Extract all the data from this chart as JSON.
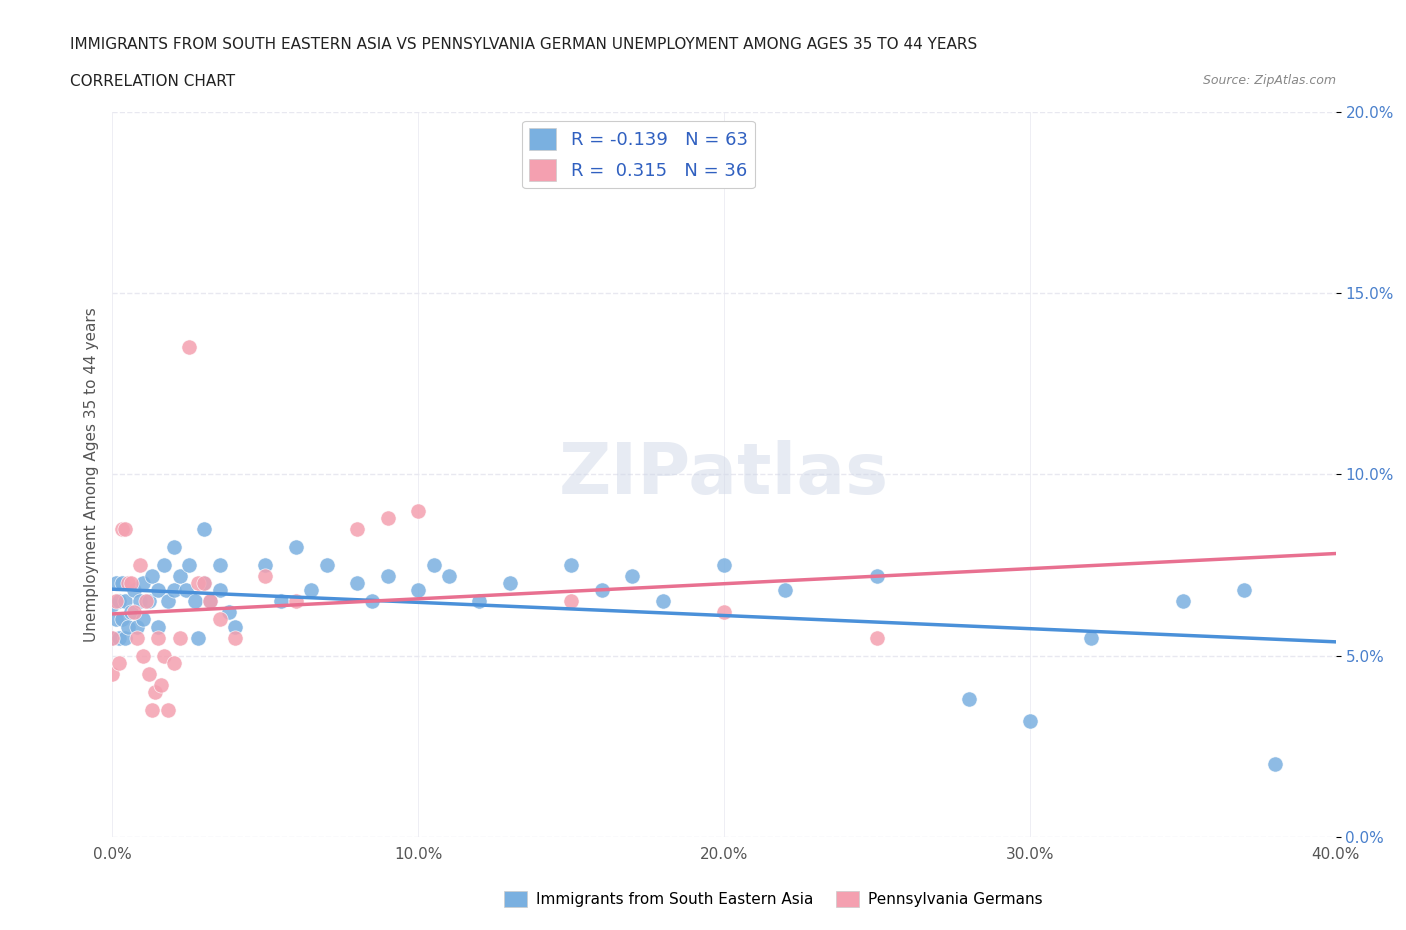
{
  "title_line1": "IMMIGRANTS FROM SOUTH EASTERN ASIA VS PENNSYLVANIA GERMAN UNEMPLOYMENT AMONG AGES 35 TO 44 YEARS",
  "title_line2": "CORRELATION CHART",
  "source": "Source: ZipAtlas.com",
  "xlabel": "",
  "ylabel": "Unemployment Among Ages 35 to 44 years",
  "xmin": 0.0,
  "xmax": 0.4,
  "ymin": 0.0,
  "ymax": 0.2,
  "series1_label": "Immigrants from South Eastern Asia",
  "series1_color": "#7ab0e0",
  "series1_line_color": "#4a90d9",
  "series1_R": -0.139,
  "series1_N": 63,
  "series2_label": "Pennsylvania Germans",
  "series2_color": "#f4a0b0",
  "series2_line_color": "#e87090",
  "series2_R": 0.315,
  "series2_N": 36,
  "legend_R_color": "#3060c0",
  "legend_N_color": "#3060c0",
  "watermark": "ZIPatlas",
  "background_color": "#ffffff",
  "grid_color": "#e8e8f0",
  "yticks": [
    0.0,
    0.05,
    0.1,
    0.15,
    0.2
  ],
  "xticks": [
    0.0,
    0.1,
    0.2,
    0.3,
    0.4
  ],
  "blue_scatter": [
    [
      0.0,
      0.064
    ],
    [
      0.0,
      0.055
    ],
    [
      0.001,
      0.07
    ],
    [
      0.001,
      0.06
    ],
    [
      0.002,
      0.065
    ],
    [
      0.002,
      0.055
    ],
    [
      0.003,
      0.06
    ],
    [
      0.003,
      0.07
    ],
    [
      0.004,
      0.065
    ],
    [
      0.004,
      0.055
    ],
    [
      0.005,
      0.058
    ],
    [
      0.006,
      0.062
    ],
    [
      0.007,
      0.068
    ],
    [
      0.008,
      0.058
    ],
    [
      0.009,
      0.065
    ],
    [
      0.01,
      0.07
    ],
    [
      0.01,
      0.06
    ],
    [
      0.012,
      0.065
    ],
    [
      0.013,
      0.072
    ],
    [
      0.015,
      0.068
    ],
    [
      0.015,
      0.058
    ],
    [
      0.017,
      0.075
    ],
    [
      0.018,
      0.065
    ],
    [
      0.02,
      0.08
    ],
    [
      0.02,
      0.068
    ],
    [
      0.022,
      0.072
    ],
    [
      0.024,
      0.068
    ],
    [
      0.025,
      0.075
    ],
    [
      0.027,
      0.065
    ],
    [
      0.028,
      0.055
    ],
    [
      0.03,
      0.085
    ],
    [
      0.03,
      0.07
    ],
    [
      0.032,
      0.065
    ],
    [
      0.035,
      0.075
    ],
    [
      0.035,
      0.068
    ],
    [
      0.038,
      0.062
    ],
    [
      0.04,
      0.058
    ],
    [
      0.05,
      0.075
    ],
    [
      0.055,
      0.065
    ],
    [
      0.06,
      0.08
    ],
    [
      0.065,
      0.068
    ],
    [
      0.07,
      0.075
    ],
    [
      0.08,
      0.07
    ],
    [
      0.085,
      0.065
    ],
    [
      0.09,
      0.072
    ],
    [
      0.1,
      0.068
    ],
    [
      0.105,
      0.075
    ],
    [
      0.11,
      0.072
    ],
    [
      0.12,
      0.065
    ],
    [
      0.13,
      0.07
    ],
    [
      0.15,
      0.075
    ],
    [
      0.16,
      0.068
    ],
    [
      0.17,
      0.072
    ],
    [
      0.18,
      0.065
    ],
    [
      0.2,
      0.075
    ],
    [
      0.22,
      0.068
    ],
    [
      0.25,
      0.072
    ],
    [
      0.28,
      0.038
    ],
    [
      0.3,
      0.032
    ],
    [
      0.32,
      0.055
    ],
    [
      0.35,
      0.065
    ],
    [
      0.37,
      0.068
    ],
    [
      0.38,
      0.02
    ]
  ],
  "pink_scatter": [
    [
      0.0,
      0.055
    ],
    [
      0.0,
      0.045
    ],
    [
      0.001,
      0.065
    ],
    [
      0.002,
      0.048
    ],
    [
      0.003,
      0.085
    ],
    [
      0.004,
      0.085
    ],
    [
      0.005,
      0.07
    ],
    [
      0.006,
      0.07
    ],
    [
      0.007,
      0.062
    ],
    [
      0.008,
      0.055
    ],
    [
      0.009,
      0.075
    ],
    [
      0.01,
      0.05
    ],
    [
      0.011,
      0.065
    ],
    [
      0.012,
      0.045
    ],
    [
      0.013,
      0.035
    ],
    [
      0.014,
      0.04
    ],
    [
      0.015,
      0.055
    ],
    [
      0.016,
      0.042
    ],
    [
      0.017,
      0.05
    ],
    [
      0.018,
      0.035
    ],
    [
      0.02,
      0.048
    ],
    [
      0.022,
      0.055
    ],
    [
      0.025,
      0.135
    ],
    [
      0.028,
      0.07
    ],
    [
      0.03,
      0.07
    ],
    [
      0.032,
      0.065
    ],
    [
      0.035,
      0.06
    ],
    [
      0.04,
      0.055
    ],
    [
      0.05,
      0.072
    ],
    [
      0.06,
      0.065
    ],
    [
      0.08,
      0.085
    ],
    [
      0.09,
      0.088
    ],
    [
      0.1,
      0.09
    ],
    [
      0.15,
      0.065
    ],
    [
      0.2,
      0.062
    ],
    [
      0.25,
      0.055
    ]
  ]
}
